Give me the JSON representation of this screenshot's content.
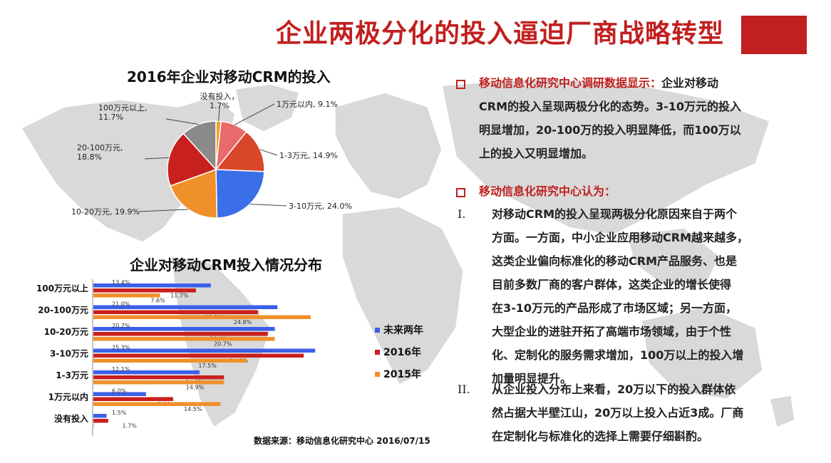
{
  "page": {
    "title": "企业两极分化的投入逼迫厂商战略转型",
    "source": "数据来源：移动信息化研究中心 2016/07/15",
    "accent_color": "#c0201f"
  },
  "right_panel": {
    "section1_head": "移动信息化研究中心调研数据显示：",
    "section1_text_a": "企业对移动",
    "section1_lines": [
      "CRM的投入呈现两极分化的态势。3-10万元的投入",
      "明显增加，20-100万的投入明显降低，而100万以",
      "上的投入又明显增加。"
    ],
    "section2_head": "移动信息化研究中心认为：",
    "item1_num": "I.",
    "item1_lines": [
      "对移动CRM的投入呈现两极分化原因来自于两个",
      "方面。一方面，中小企业应用移动CRM越来越多，",
      "这类企业偏向标准化的移动CRM产品服务、也是",
      "目前多数厂商的客户群体，这类企业的增长使得",
      "在3-10万元的产品形成了市场区域；另一方面，",
      "大型企业的进驻开拓了高端市场领域，由于个性",
      "化、定制化的服务需求增加，100万以上的投入增",
      "加量明显提升。"
    ],
    "item2_num": "II.",
    "item2_lines": [
      "从企业投入分布上来看，20万以下的投入群体依",
      "然占据大半壁江山，20万以上投入占近3成。厂商",
      "在定制化与标准化的选择上需要仔细斟酌。"
    ]
  },
  "chart_data": [
    {
      "type": "pie",
      "title": "2016年企业对移动CRM的投入",
      "slices": [
        {
          "label": "没有投入，",
          "value": 1.7,
          "value_label": "1.7%",
          "color": "#f0a030"
        },
        {
          "label": "1万元以内,",
          "value": 9.1,
          "value_label": "9.1%",
          "color": "#e86a6a"
        },
        {
          "label": "1-3万元,",
          "value": 14.9,
          "value_label": "14.9%",
          "color": "#d9472b"
        },
        {
          "label": "3-10万元,",
          "value": 24.0,
          "value_label": "24.0%",
          "color": "#3b6fe8"
        },
        {
          "label": "10-20万元,",
          "value": 19.9,
          "value_label": "19.9%",
          "color": "#f0902a"
        },
        {
          "label": "20-100万元,",
          "value": 18.8,
          "value_label": "18.8%",
          "color": "#c8201e"
        },
        {
          "label": "100万元以上,",
          "value": 11.7,
          "value_label": "11.7%",
          "color": "#8a8a8a"
        }
      ]
    },
    {
      "type": "bar",
      "orientation": "horizontal",
      "title": "企业对移动CRM投入情况分布",
      "categories": [
        "100万元以上",
        "20-100万元",
        "10-20万元",
        "3-10万元",
        "1-3万元",
        "1万元以内",
        "没有投入"
      ],
      "series": [
        {
          "name": "未来两年",
          "color": "#3b5fe8",
          "values": [
            13.4,
            21.0,
            20.7,
            25.3,
            12.1,
            6.0,
            1.5
          ],
          "labels": [
            "13.4%",
            "21.0%",
            "20.7%",
            "25.3%",
            "12.1%",
            "6.0%",
            "1.5%"
          ]
        },
        {
          "name": "2016年",
          "color": "#c8201e",
          "values": [
            11.7,
            18.8,
            19.9,
            24.0,
            14.9,
            9.1,
            1.7
          ],
          "labels": [
            "11.7%",
            "18.8%",
            "19.9%",
            "24.0%",
            "14.9%",
            "9.1%",
            "1.7%"
          ]
        },
        {
          "name": "2015年",
          "color": "#f0902a",
          "values": [
            7.6,
            24.8,
            20.7,
            17.5,
            14.9,
            14.5,
            0
          ],
          "labels": [
            "7.6%",
            "24.8%",
            "20.7%",
            "17.5%",
            "14.9%",
            "14.5%",
            ""
          ]
        }
      ],
      "legend_position": "right"
    }
  ]
}
